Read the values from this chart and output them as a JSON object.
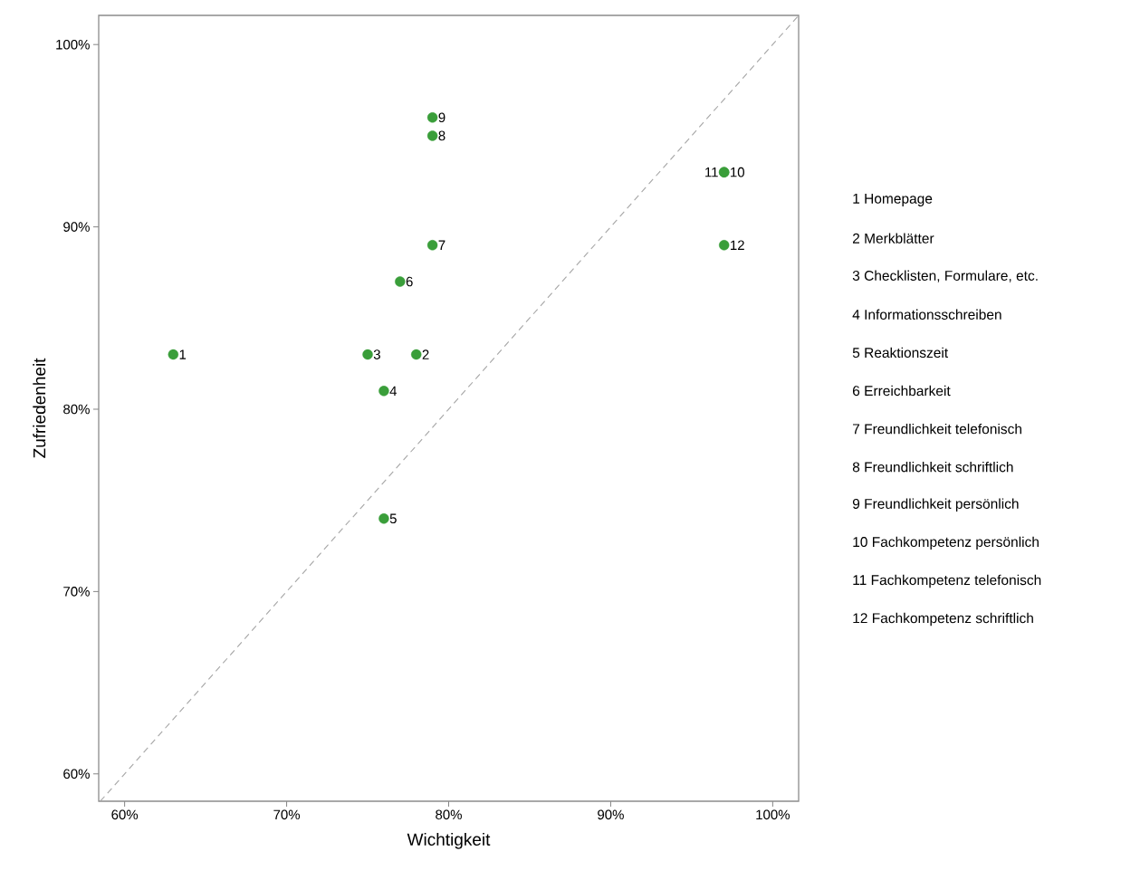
{
  "chart_data": {
    "type": "scatter",
    "xlabel": "Wichtigkeit",
    "ylabel": "Zufriedenheit",
    "xlim": [
      58.4,
      101.6
    ],
    "ylim": [
      58.5,
      101.6
    ],
    "xticks": [
      {
        "value": 60,
        "label": "60%"
      },
      {
        "value": 70,
        "label": "70%"
      },
      {
        "value": 80,
        "label": "80%"
      },
      {
        "value": 90,
        "label": "90%"
      },
      {
        "value": 100,
        "label": "100%"
      }
    ],
    "yticks": [
      {
        "value": 60,
        "label": "60%"
      },
      {
        "value": 70,
        "label": "70%"
      },
      {
        "value": 80,
        "label": "80%"
      },
      {
        "value": 90,
        "label": "90%"
      },
      {
        "value": 100,
        "label": "100%"
      }
    ],
    "grid": false,
    "series": [
      {
        "type": "line",
        "color": "#a6a6a6",
        "line_style": "dashed",
        "x": [
          58.5,
          101.6
        ],
        "values": [
          58.5,
          101.6
        ]
      },
      {
        "color": "#3a9e3a",
        "marker": "circle",
        "x": [
          63,
          78,
          75,
          76,
          76,
          77,
          79,
          79,
          79,
          97,
          97,
          97
        ],
        "values": [
          83,
          83,
          83,
          81,
          74,
          87,
          89,
          95,
          96,
          93,
          93,
          89
        ]
      }
    ],
    "annotations": [
      {
        "text": "1",
        "x": 63,
        "y": 83
      },
      {
        "text": "2",
        "x": 78,
        "y": 83
      },
      {
        "text": "3",
        "x": 75,
        "y": 83
      },
      {
        "text": "4",
        "x": 76,
        "y": 81
      },
      {
        "text": "5",
        "x": 76,
        "y": 74
      },
      {
        "text": "6",
        "x": 77,
        "y": 87
      },
      {
        "text": "7",
        "x": 79,
        "y": 89
      },
      {
        "text": "8",
        "x": 79,
        "y": 95
      },
      {
        "text": "9",
        "x": 79,
        "y": 96
      },
      {
        "text": "10",
        "x": 97,
        "y": 93
      },
      {
        "text": "11",
        "x": 97,
        "y": 93
      },
      {
        "text": "12",
        "x": 97,
        "y": 89
      },
      "1 Homepage",
      "2 Merkblätter",
      "3 Checklisten, Formulare, etc.",
      "4 Informationsschreiben",
      "5 Reaktionszeit",
      "6 Erreichbarkeit",
      "7 Freundlichkeit telefonisch",
      "8 Freundlichkeit schriftlich",
      "9 Freundlichkeit persönlich",
      "10 Fachkompetenz persönlich",
      "11 Fachkompetenz telefonisch",
      "12 Fachkompetenz schriftlich"
    ]
  }
}
